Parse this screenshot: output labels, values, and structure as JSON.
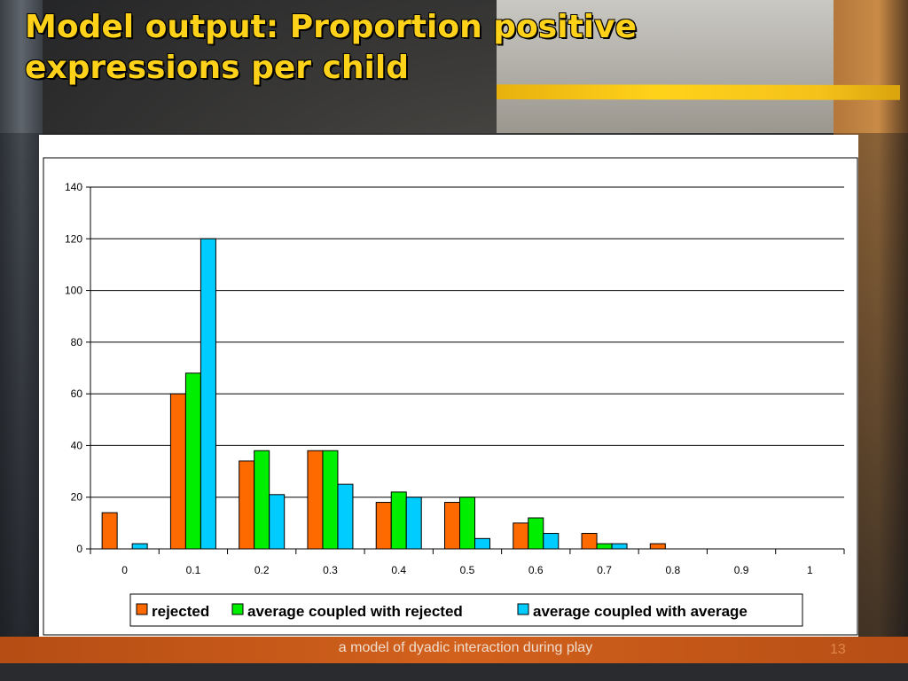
{
  "slide": {
    "title": "Model output: Proportion positive expressions per child",
    "footer": "a model of dyadic interaction during play",
    "slide_number": "13"
  },
  "chart_data": {
    "type": "bar",
    "title": "",
    "xlabel": "",
    "ylabel": "",
    "categories": [
      "0",
      "0.1",
      "0.2",
      "0.3",
      "0.4",
      "0.5",
      "0.6",
      "0.7",
      "0.8",
      "0.9",
      "1"
    ],
    "series": [
      {
        "name": "rejected",
        "color": "#ff6a00",
        "values": [
          14,
          60,
          34,
          38,
          18,
          18,
          10,
          6,
          2,
          0,
          0
        ]
      },
      {
        "name": "average coupled with rejected",
        "color": "#00ee00",
        "values": [
          0,
          68,
          38,
          38,
          22,
          20,
          12,
          2,
          0,
          0,
          0
        ]
      },
      {
        "name": "average coupled with average",
        "color": "#00ccff",
        "values": [
          2,
          120,
          21,
          25,
          20,
          4,
          6,
          2,
          0,
          0,
          0
        ]
      }
    ],
    "ylim": [
      0,
      140
    ],
    "yticks": [
      0,
      20,
      40,
      60,
      80,
      100,
      120,
      140
    ],
    "grid": true,
    "legend_position": "bottom"
  }
}
